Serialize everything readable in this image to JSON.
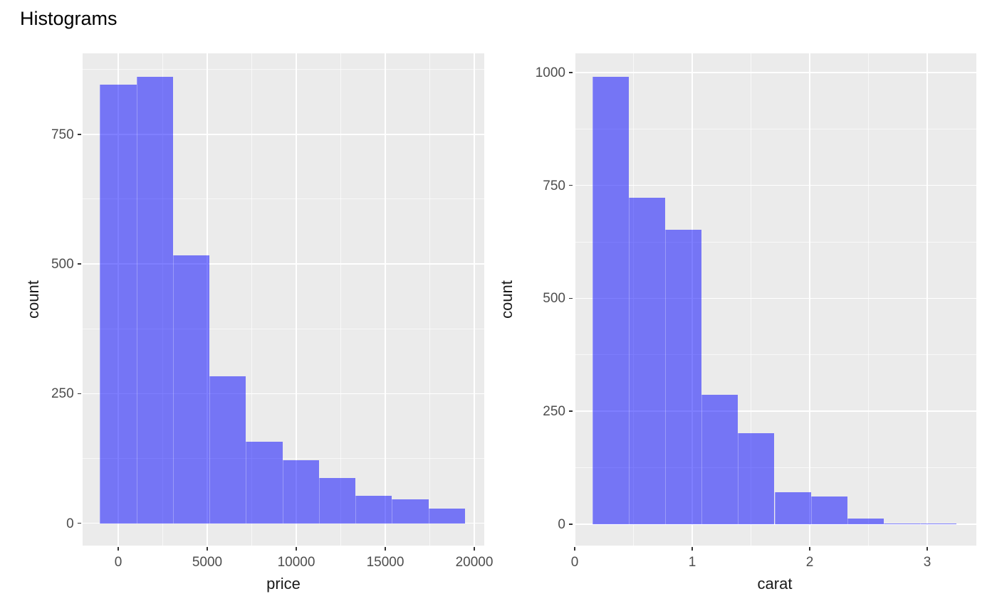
{
  "title": "Histograms",
  "colors": {
    "bar_fill": "rgba(0,0,255,0.5)",
    "panel_background": "#EBEBEB",
    "gridline": "#FFFFFF",
    "tick_label_text": "#4D4D4D",
    "axis_title_text": "#1A1A1A",
    "title_text": "#000000",
    "tick_mark": "#333333"
  },
  "chart_data": [
    {
      "type": "bar",
      "subtype": "histogram",
      "title": "",
      "xlabel": "price",
      "ylabel": "count",
      "bin_start": -1025,
      "bin_width": 2050,
      "counts": [
        845,
        861,
        516,
        284,
        157,
        121,
        88,
        53,
        46,
        29
      ],
      "total_n": 3000,
      "x_tick_values": [
        0,
        5000,
        10000,
        15000,
        20000
      ],
      "x_tick_labels": [
        "0",
        "5000",
        "10000",
        "15000",
        "20000"
      ],
      "x_minor_values": [
        2500,
        7500,
        12500,
        17500
      ],
      "y_tick_values": [
        0,
        250,
        500,
        750
      ],
      "y_tick_labels": [
        "0",
        "250",
        "500",
        "750"
      ],
      "y_minor_values": [
        125,
        375,
        625,
        875
      ],
      "xlim": [
        -2012,
        20560
      ],
      "ylim": [
        -42.5,
        906
      ],
      "grid": true,
      "legend": false
    },
    {
      "type": "bar",
      "subtype": "histogram",
      "title": "",
      "xlabel": "carat",
      "ylabel": "count",
      "bin_start": 0.15,
      "bin_width": 0.31,
      "counts": [
        990,
        722,
        652,
        286,
        202,
        71,
        62,
        12,
        2,
        1
      ],
      "total_n": 3000,
      "x_tick_values": [
        0,
        1,
        2,
        3
      ],
      "x_tick_labels": [
        "0",
        "1",
        "2",
        "3"
      ],
      "x_minor_values": [
        0.5,
        1.5,
        2.5
      ],
      "y_tick_values": [
        0,
        250,
        500,
        750,
        1000
      ],
      "y_tick_labels": [
        "0",
        "250",
        "500",
        "750",
        "1000"
      ],
      "y_minor_values": [
        125,
        375,
        625,
        875
      ],
      "xlim": [
        -0.006,
        3.418
      ],
      "ylim": [
        -46.9,
        1042.4
      ],
      "grid": true,
      "legend": false
    }
  ]
}
